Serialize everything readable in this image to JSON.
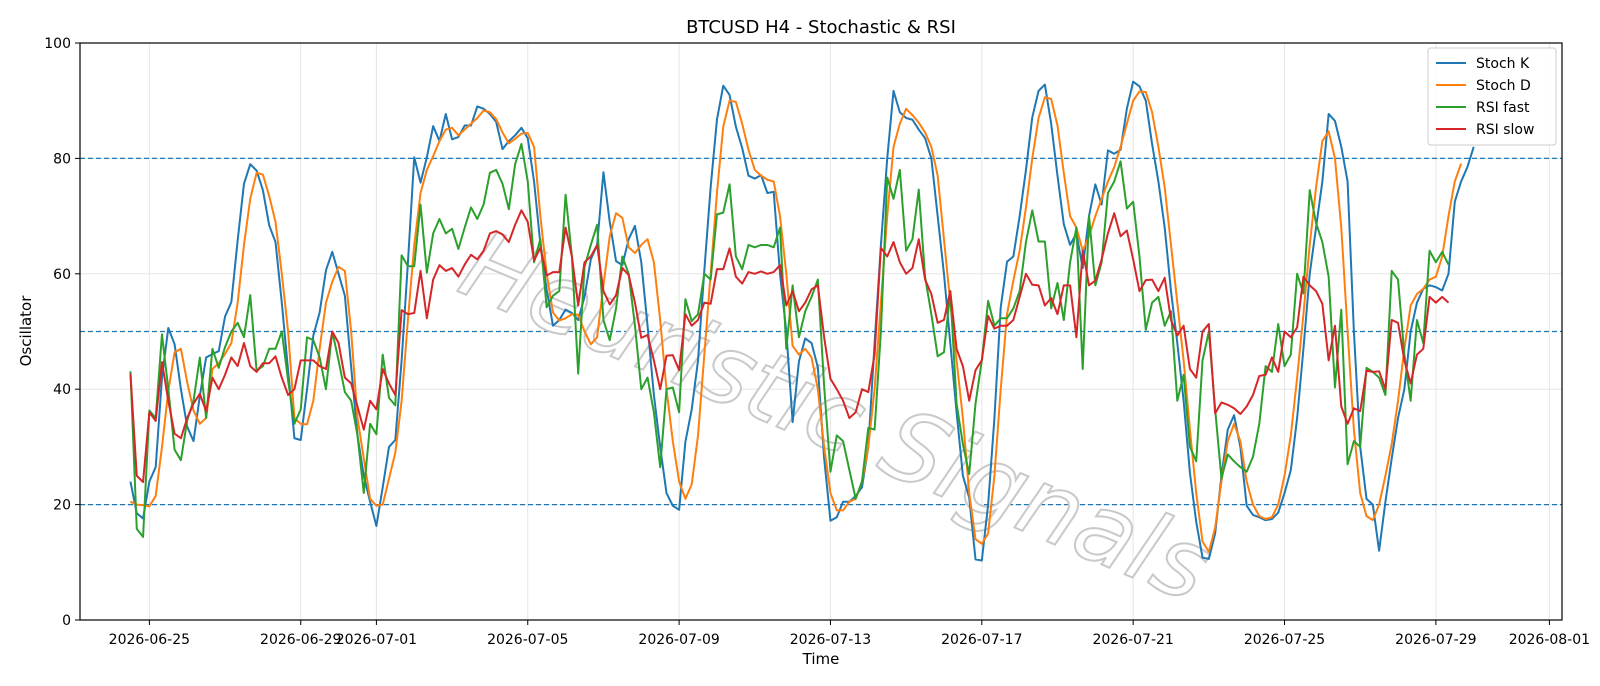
{
  "chart_data": {
    "type": "line",
    "title": "BTCUSD H4 - Stochastic & RSI",
    "xlabel": "Time",
    "ylabel": "Oscillator",
    "ylim": [
      0,
      100
    ],
    "xlim": [
      "2026-06-23T04:00",
      "2026-08-01T08:00"
    ],
    "x_start": "2026-06-24T12:00",
    "x_step_hours": 4,
    "xticks": [
      "2026-06-25",
      "2026-06-29",
      "2026-07-01",
      "2026-07-05",
      "2026-07-09",
      "2026-07-13",
      "2026-07-17",
      "2026-07-21",
      "2026-07-25",
      "2026-07-29",
      "2026-08-01"
    ],
    "yticks": [
      0,
      20,
      40,
      60,
      80,
      100
    ],
    "hlines": [
      20,
      50,
      80
    ],
    "grid": true,
    "legend_position": "top-right",
    "watermark": "Heuristic Signals",
    "series": [
      {
        "name": "Stoch K",
        "color": "#1f77b4",
        "values": [
          24.0,
          18.5,
          17.6,
          24.0,
          26.5,
          42.0,
          50.6,
          47.8,
          40.0,
          33.5,
          31.0,
          38.8,
          45.5,
          46.1,
          46.6,
          52.6,
          55.1,
          65.8,
          75.6,
          79.0,
          77.9,
          74.5,
          68.4,
          65.5,
          55.0,
          43.2,
          31.5,
          31.2,
          40.0,
          49.3,
          53.3,
          60.6,
          63.8,
          60.0,
          56.2,
          43.8,
          32.0,
          25.0,
          20.5,
          16.3,
          23.0,
          30.0,
          31.2,
          45.0,
          62.0,
          80.2,
          75.8,
          80.2,
          85.6,
          83.0,
          87.7,
          83.3,
          83.7,
          85.7,
          85.7,
          89.0,
          88.6,
          87.7,
          86.3,
          81.6,
          83.0,
          84.0,
          85.3,
          83.5,
          76.0,
          65.2,
          57.2,
          51.0,
          52.0,
          53.8,
          53.2,
          52.0,
          56.0,
          62.5,
          65.0,
          77.6,
          69.0,
          62.2,
          61.5,
          66.0,
          68.3,
          62.0,
          51.0,
          39.0,
          30.0,
          22.0,
          19.8,
          19.1,
          30.9,
          36.5,
          45.0,
          60.6,
          75.0,
          86.7,
          92.6,
          91.0,
          85.5,
          81.8,
          77.0,
          76.5,
          77.1,
          74.0,
          74.2,
          60.0,
          50.0,
          34.3,
          44.8,
          48.8,
          48.0,
          43.8,
          28.0,
          17.2,
          17.8,
          20.5,
          20.5,
          21.5,
          23.0,
          30.0,
          48.0,
          65.0,
          80.0,
          91.7,
          88.0,
          87.0,
          86.7,
          85.0,
          83.5,
          80.0,
          70.0,
          60.0,
          48.0,
          36.0,
          25.0,
          21.2,
          10.5,
          10.3,
          20.0,
          35.0,
          54.2,
          62.1,
          63.0,
          70.0,
          78.0,
          87.1,
          91.7,
          92.8,
          86.0,
          77.0,
          68.6,
          65.0,
          67.0,
          61.0,
          70.0,
          75.5,
          72.0,
          81.4,
          80.8,
          81.5,
          88.6,
          93.3,
          92.5,
          90.0,
          82.5,
          76.0,
          68.0,
          57.0,
          48.0,
          38.0,
          25.5,
          17.0,
          10.8,
          10.6,
          15.0,
          25.0,
          33.0,
          35.5,
          30.0,
          19.8,
          18.2,
          17.8,
          17.3,
          17.5,
          18.6,
          22.0,
          26.0,
          35.0,
          47.0,
          60.0,
          68.0,
          76.0,
          87.7,
          86.5,
          82.0,
          76.0,
          50.0,
          30.0,
          21.0,
          20.0,
          12.0,
          20.5,
          28.0,
          35.0,
          40.0,
          50.0,
          55.0,
          57.4,
          58.0,
          57.7,
          57.1,
          60.0,
          72.5,
          76.0,
          78.5,
          82.0
        ]
      },
      {
        "name": "Stoch D",
        "color": "#ff7f0e",
        "values": [
          20.5,
          20.0,
          19.9,
          19.7,
          21.5,
          30.0,
          39.7,
          46.4,
          47.0,
          41.2,
          36.3,
          34.0,
          35.0,
          43.5,
          44.5,
          46.1,
          48.0,
          55.0,
          65.0,
          73.0,
          77.5,
          77.2,
          73.5,
          69.0,
          60.0,
          50.0,
          35.0,
          34.0,
          33.9,
          38.0,
          47.0,
          55.0,
          58.6,
          61.2,
          60.5,
          50.0,
          35.0,
          28.0,
          21.0,
          19.8,
          20.0,
          24.5,
          29.0,
          38.0,
          52.0,
          65.0,
          74.0,
          78.0,
          80.4,
          83.0,
          85.0,
          85.3,
          84.0,
          85.0,
          86.0,
          87.0,
          88.3,
          88.0,
          86.8,
          84.5,
          82.6,
          83.4,
          84.3,
          84.4,
          82.0,
          70.0,
          60.0,
          53.3,
          51.9,
          52.3,
          53.0,
          52.9,
          50.0,
          47.8,
          49.0,
          58.0,
          66.5,
          70.5,
          69.7,
          64.6,
          63.6,
          65.0,
          66.0,
          62.0,
          52.0,
          40.0,
          31.0,
          24.0,
          21.0,
          23.5,
          32.0,
          46.0,
          60.0,
          74.0,
          85.5,
          90.0,
          89.8,
          86.0,
          81.5,
          78.0,
          77.0,
          76.3,
          76.0,
          70.0,
          60.0,
          47.5,
          46.0,
          47.0,
          45.5,
          40.0,
          30.0,
          22.0,
          19.0,
          19.0,
          20.5,
          21.0,
          24.0,
          30.0,
          40.0,
          55.0,
          70.0,
          82.0,
          86.0,
          88.6,
          87.5,
          86.2,
          84.5,
          82.0,
          77.0,
          66.0,
          55.0,
          45.0,
          35.0,
          22.0,
          14.0,
          13.2,
          15.0,
          25.0,
          40.0,
          53.0,
          58.8,
          64.0,
          71.5,
          80.0,
          87.0,
          90.6,
          90.3,
          85.7,
          77.5,
          70.0,
          68.0,
          64.0,
          66.5,
          70.0,
          73.0,
          76.0,
          78.5,
          82.0,
          86.0,
          90.0,
          91.6,
          91.5,
          88.0,
          82.0,
          75.0,
          65.0,
          55.0,
          45.0,
          33.0,
          22.0,
          13.6,
          11.8,
          16.0,
          24.0,
          31.0,
          34.0,
          31.0,
          24.0,
          20.0,
          18.0,
          17.5,
          17.8,
          20.0,
          25.0,
          32.0,
          42.0,
          53.0,
          65.0,
          75.0,
          83.0,
          84.7,
          80.0,
          68.0,
          50.0,
          33.0,
          22.0,
          18.0,
          17.3,
          20.0,
          25.0,
          30.5,
          38.0,
          47.0,
          54.5,
          56.5,
          57.4,
          59.0,
          59.5,
          63.0,
          70.0,
          76.0,
          79.1
        ]
      },
      {
        "name": "RSI fast",
        "color": "#2ca02c",
        "values": [
          43.1,
          15.8,
          14.4,
          36.3,
          35.0,
          49.5,
          40.0,
          29.5,
          27.7,
          34.6,
          38.0,
          45.5,
          35.0,
          47.0,
          43.7,
          47.3,
          50.0,
          51.5,
          49.0,
          56.3,
          43.2,
          44.0,
          47.0,
          47.0,
          50.0,
          41.5,
          34.0,
          36.5,
          49.0,
          48.5,
          45.5,
          40.0,
          50.0,
          45.0,
          39.5,
          38.0,
          32.0,
          22.0,
          34.0,
          32.2,
          46.0,
          38.5,
          37.2,
          63.2,
          61.3,
          61.3,
          72.0,
          60.2,
          67.0,
          69.5,
          67.0,
          67.8,
          64.3,
          68.0,
          71.5,
          69.5,
          72.0,
          77.5,
          78.0,
          75.6,
          71.2,
          79.0,
          82.5,
          76.0,
          62.0,
          66.0,
          54.2,
          56.2,
          57.0,
          73.7,
          63.0,
          42.7,
          61.2,
          65.0,
          68.5,
          52.0,
          48.5,
          54.0,
          63.0,
          60.0,
          51.0,
          40.0,
          42.0,
          36.0,
          26.5,
          40.0,
          40.3,
          36.0,
          55.6,
          51.8,
          53.0,
          60.0,
          59.0,
          70.3,
          70.6,
          75.5,
          63.0,
          60.8,
          65.0,
          64.6,
          65.0,
          65.0,
          64.6,
          68.0,
          47.0,
          58.0,
          49.0,
          53.5,
          56.0,
          59.0,
          40.5,
          25.7,
          32.0,
          31.0,
          26.0,
          21.0,
          24.0,
          33.3,
          33.0,
          50.0,
          76.7,
          73.0,
          78.0,
          64.0,
          66.0,
          74.6,
          59.5,
          53.0,
          45.7,
          46.4,
          57.0,
          37.5,
          30.5,
          25.3,
          37.5,
          45.0,
          55.3,
          51.0,
          52.3,
          52.3,
          54.0,
          57.0,
          65.5,
          71.0,
          65.6,
          65.6,
          54.0,
          58.4,
          52.0,
          62.0,
          68.0,
          43.5,
          70.0,
          58.0,
          62.0,
          74.0,
          76.0,
          79.5,
          71.3,
          72.5,
          63.0,
          50.3,
          55.0,
          56.0,
          51.0,
          53.5,
          38.0,
          42.5,
          30.0,
          27.5,
          45.0,
          50.0,
          36.5,
          24.5,
          28.7,
          27.5,
          26.5,
          25.7,
          28.3,
          34.0,
          44.0,
          43.0,
          51.3,
          44.0,
          46.0,
          60.0,
          56.6,
          74.5,
          68.8,
          65.5,
          59.5,
          40.3,
          53.8,
          27.0,
          31.0,
          30.0,
          43.7,
          43.0,
          42.0,
          39.0,
          60.5,
          59.0,
          46.0,
          38.0,
          52.0,
          48.0,
          64.0,
          62.0,
          63.8,
          61.6
        ]
      },
      {
        "name": "RSI slow",
        "color": "#d62728",
        "values": [
          42.7,
          25.0,
          23.9,
          36.0,
          34.5,
          44.7,
          38.0,
          32.3,
          31.5,
          35.0,
          37.5,
          39.2,
          36.2,
          42.0,
          40.0,
          42.5,
          45.5,
          44.0,
          48.0,
          44.0,
          43.0,
          44.5,
          44.5,
          45.7,
          42.0,
          39.0,
          40.0,
          45.0,
          45.0,
          45.0,
          44.0,
          43.5,
          50.0,
          48.0,
          42.0,
          41.0,
          37.0,
          33.0,
          38.0,
          36.5,
          43.5,
          41.0,
          39.0,
          53.7,
          53.0,
          53.2,
          60.5,
          52.3,
          59.0,
          61.5,
          60.5,
          61.0,
          59.5,
          61.6,
          63.3,
          62.5,
          64.0,
          67.0,
          67.4,
          66.8,
          65.5,
          68.5,
          71.0,
          69.0,
          62.3,
          64.5,
          59.7,
          60.3,
          60.3,
          68.0,
          63.0,
          54.5,
          62.0,
          63.0,
          65.0,
          57.0,
          54.7,
          56.3,
          61.0,
          59.8,
          55.0,
          48.9,
          49.4,
          45.0,
          40.0,
          45.8,
          45.9,
          43.3,
          53.0,
          51.0,
          52.0,
          55.0,
          54.8,
          60.8,
          60.8,
          64.4,
          59.5,
          58.3,
          60.3,
          60.0,
          60.4,
          60.0,
          60.3,
          61.5,
          54.5,
          57.0,
          53.5,
          55.0,
          57.3,
          58.0,
          49.0,
          41.8,
          40.0,
          38.0,
          35.0,
          36.0,
          40.0,
          39.5,
          46.0,
          64.5,
          63.0,
          65.5,
          62.0,
          60.0,
          61.0,
          66.0,
          59.0,
          56.5,
          51.5,
          52.0,
          57.0,
          47.0,
          44.0,
          38.0,
          43.3,
          45.0,
          52.7,
          50.5,
          51.0,
          51.0,
          52.0,
          56.0,
          60.0,
          58.1,
          58.0,
          54.5,
          55.8,
          53.0,
          58.0,
          58.0,
          49.0,
          64.0,
          58.0,
          58.8,
          62.5,
          67.0,
          70.5,
          66.5,
          67.5,
          62.5,
          57.0,
          58.9,
          59.0,
          57.0,
          59.3,
          52.0,
          49.3,
          51.0,
          43.5,
          42.0,
          50.0,
          51.3,
          35.8,
          37.7,
          37.3,
          36.7,
          35.7,
          37.0,
          39.0,
          42.3,
          42.5,
          45.5,
          43.0,
          50.0,
          49.0,
          50.7,
          59.5,
          58.0,
          57.0,
          54.8,
          45.0,
          51.0,
          37.0,
          34.0,
          36.7,
          36.2,
          43.2,
          43.0,
          43.1,
          40.0,
          52.0,
          51.5,
          45.0,
          41.0,
          46.0,
          47.0,
          56.0,
          55.0,
          56.0,
          55.0
        ]
      }
    ]
  }
}
